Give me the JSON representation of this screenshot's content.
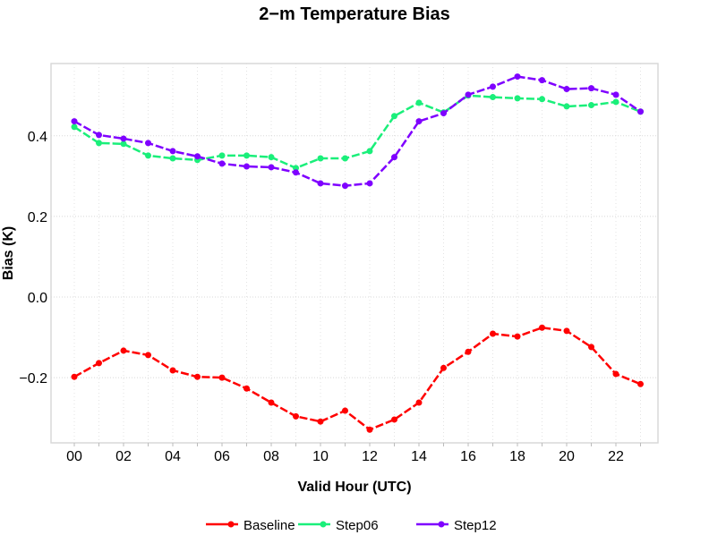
{
  "chart_data": {
    "type": "line",
    "title": "2−m Temperature Bias",
    "xlabel": "Valid Hour (UTC)",
    "ylabel": "Bias (K)",
    "x": [
      0,
      1,
      2,
      3,
      4,
      5,
      6,
      7,
      8,
      9,
      10,
      11,
      12,
      13,
      14,
      15,
      16,
      17,
      18,
      19,
      20,
      21,
      22,
      23
    ],
    "xticks": [
      0,
      2,
      4,
      6,
      8,
      10,
      12,
      14,
      16,
      18,
      20,
      22
    ],
    "xtick_labels": [
      "00",
      "02",
      "04",
      "06",
      "08",
      "10",
      "12",
      "14",
      "16",
      "18",
      "20",
      "22"
    ],
    "yticks": [
      -0.2,
      0.0,
      0.2,
      0.4
    ],
    "ytick_labels": [
      "−0.2",
      "0.0",
      "0.2",
      "0.4"
    ],
    "xlim": [
      -1,
      24
    ],
    "ylim": [
      -0.36,
      0.58
    ],
    "grid": true,
    "legend_position": "bottom",
    "series": [
      {
        "name": "Baseline",
        "color": "#ff0000",
        "values": [
          -0.198,
          -0.164,
          -0.133,
          -0.144,
          -0.182,
          -0.198,
          -0.2,
          -0.227,
          -0.262,
          -0.296,
          -0.309,
          -0.282,
          -0.329,
          -0.304,
          -0.262,
          -0.176,
          -0.136,
          -0.091,
          -0.098,
          -0.076,
          -0.084,
          -0.124,
          -0.191,
          -0.216
        ]
      },
      {
        "name": "Step06",
        "color": "#1aef7a",
        "values": [
          0.422,
          0.382,
          0.38,
          0.351,
          0.344,
          0.34,
          0.351,
          0.351,
          0.347,
          0.32,
          0.344,
          0.344,
          0.362,
          0.449,
          0.482,
          0.458,
          0.5,
          0.496,
          0.493,
          0.491,
          0.473,
          0.476,
          0.484,
          0.46
        ]
      },
      {
        "name": "Step12",
        "color": "#7f00ff",
        "values": [
          0.436,
          0.402,
          0.393,
          0.382,
          0.362,
          0.349,
          0.331,
          0.324,
          0.322,
          0.309,
          0.282,
          0.276,
          0.282,
          0.347,
          0.436,
          0.456,
          0.502,
          0.522,
          0.547,
          0.538,
          0.516,
          0.518,
          0.502,
          0.46
        ]
      }
    ]
  }
}
